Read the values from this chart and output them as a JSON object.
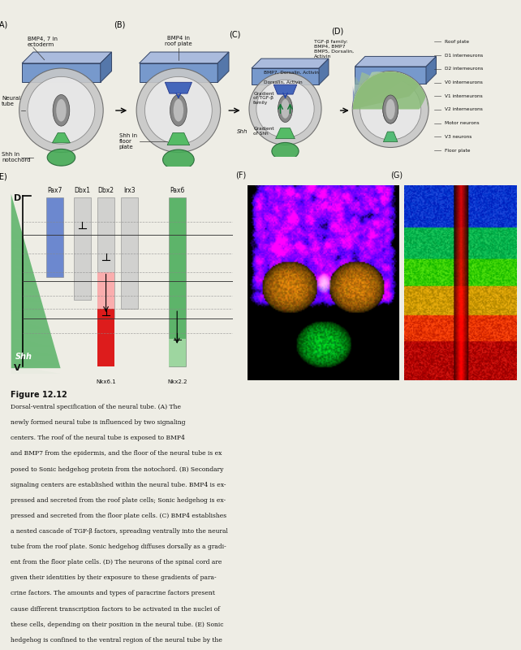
{
  "background_color": "#eeede5",
  "fig_width": 6.42,
  "fig_height": 8.0,
  "caption_title": "Figure 12.12",
  "caption_text": "Dorsal-ventral specification of the neural tube. (A) The\nnewly formed neural tube is influenced by two signaling\ncenters. The roof of the neural tube is exposed to BMP4\nand BMP7 from the epidermis, and the floor of the neural tube is ex\nposed to Sonic hedgehog protein from the notochord. (B) Secondary\nsignaling centers are established within the neural tube. BMP4 is ex-\npressed and secreted from the roof plate cells; Sonic hedgehog is ex-\npressed and secreted from the floor plate cells. (C) BMP4 establishes\na nested cascade of TGF-β factors, spreading ventrally into the neural\ntube from the roof plate. Sonic hedgehog diffuses dorsally as a gradi-\nent from the floor plate cells. (D) The neurons of the spinal cord are\ngiven their identities by their exposure to these gradients of para-\ncrine factors. The amounts and types of paracrine factors present\ncause different transcription factors to be activated in the nuclei of\nthese cells, depending on their position in the neural tube. (E) Sonic\nhedgehog is confined to the ventral region of the neural tube by the\nTGF-β factors, and the gradient of Sonic hedgehog specifies the ven-\ntral neural tube by activating and inhibiting the synthesis of particu-\nlar transcription factors. (F) Chick neural tube, showing areas of\nSonic hedgehog (green) and the expression domain of the TGF-β-\nfamily protein dorsalin (blue). Motor neurons induced by a particu-\nlar concentration of Sonic hedgehog are stained orange/yellow.\n(G) In situ hybridization for three transcription factors: Pax7\n(red, characteristic of the dorsal neural tube cells), Pax6 (green), and\nNkx6.1 (red). Where Nkx6.1 and Pax6 overlap (yellow), the motor\nneurons become specified. (E courtesy of T. M. Jessell;\nF after Jessell 2000; G courtesy of J. Briscoe.)",
  "panel_D_legend": [
    "Roof plate",
    "D1 interneurons",
    "D2 interneurons",
    "V0 interneurons",
    "V1 interneurons",
    "V2 interneurons",
    "Motor neurons",
    "V3 neurons",
    "Floor plate"
  ],
  "panel_E_col_labels": [
    "Pax7",
    "Dbx1",
    "Dbx2",
    "Irx3",
    "Pax6"
  ],
  "panel_E_bottom_labels": [
    "Nkx6.1",
    "Nkx2.2"
  ]
}
